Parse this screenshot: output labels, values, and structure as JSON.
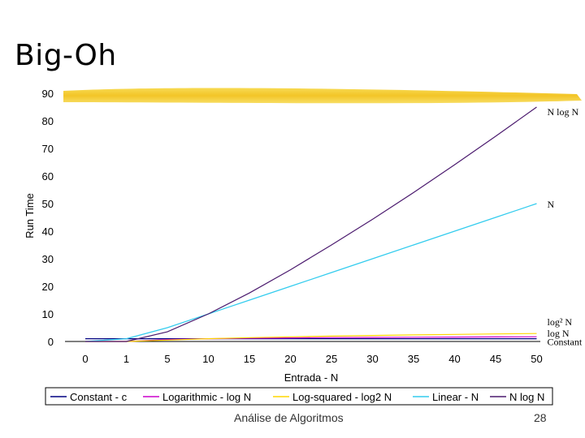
{
  "slide": {
    "title": "Big-Oh",
    "footer_left": "Análise de Algoritmos",
    "page_number": "28"
  },
  "colors": {
    "title_bar": "#f4cc2a",
    "constant": "#000080",
    "logarithmic": "#cc00cc",
    "log_squared": "#ffd700",
    "linear": "#33ccee",
    "nlogn": "#4b1a6e"
  },
  "chart_data": {
    "type": "line",
    "title": "",
    "xlabel": "Entrada - N",
    "ylabel": "Run Time",
    "categories": [
      "0",
      "1",
      "5",
      "10",
      "15",
      "20",
      "25",
      "30",
      "35",
      "40",
      "45",
      "50"
    ],
    "n_values": [
      0,
      1,
      5,
      10,
      15,
      20,
      25,
      30,
      35,
      40,
      45,
      50
    ],
    "ylim": [
      0,
      90
    ],
    "yticks": [
      0,
      10,
      20,
      30,
      40,
      50,
      60,
      70,
      80,
      90
    ],
    "grid": false,
    "legend_position": "bottom",
    "series": [
      {
        "name": "Constant - c",
        "key": "constant",
        "values": [
          1,
          1,
          1,
          1,
          1,
          1,
          1,
          1,
          1,
          1,
          1,
          1
        ]
      },
      {
        "name": "Logarithmic - log N",
        "key": "logarithmic",
        "values": [
          0,
          0,
          0.7,
          1,
          1.18,
          1.3,
          1.4,
          1.48,
          1.54,
          1.6,
          1.65,
          1.7
        ]
      },
      {
        "name": "Log-squared - log2 N",
        "key": "log_squared",
        "values": [
          0,
          0,
          0.49,
          1,
          1.38,
          1.69,
          1.95,
          2.18,
          2.38,
          2.56,
          2.73,
          2.89
        ]
      },
      {
        "name": "Linear - N",
        "key": "linear",
        "values": [
          0,
          1,
          5,
          10,
          15,
          20,
          25,
          30,
          35,
          40,
          45,
          50
        ]
      },
      {
        "name": "N log N",
        "key": "nlogn",
        "values": [
          0,
          0,
          3.5,
          10,
          17.6,
          26,
          35,
          44.3,
          54,
          64.1,
          74.4,
          85
        ]
      }
    ],
    "annotations": [
      {
        "text": "N log N",
        "series": "nlogn"
      },
      {
        "text": "N",
        "series": "linear"
      },
      {
        "text": "log² N",
        "series": "log_squared"
      },
      {
        "text": "log N",
        "series": "logarithmic"
      },
      {
        "text": "Constant",
        "series": "constant"
      }
    ]
  }
}
